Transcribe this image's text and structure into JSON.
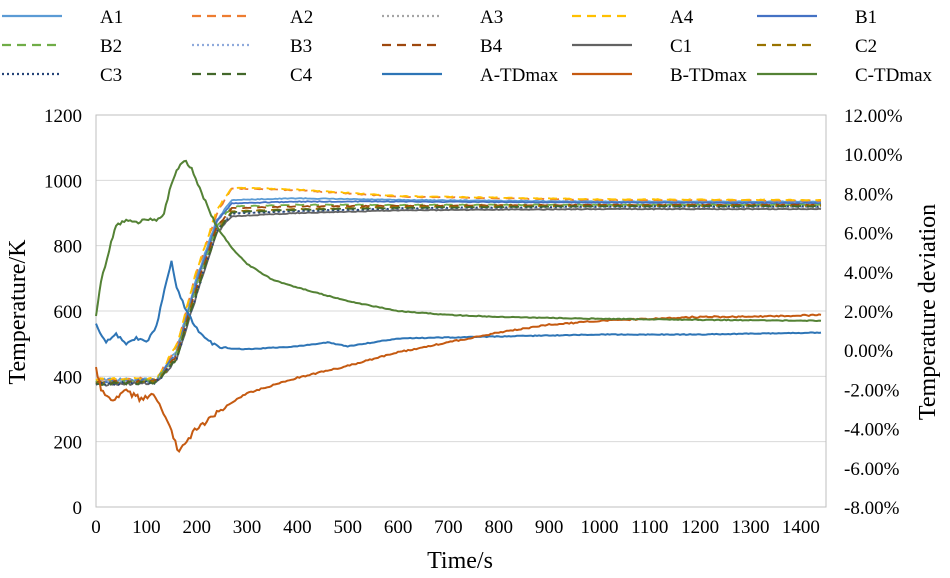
{
  "chart_data": {
    "type": "line",
    "title": "",
    "xlabel": "Time/s",
    "ylabel": "Temperature/K",
    "y2label": "Temperature deviation",
    "xlim": [
      0,
      1450
    ],
    "ylim": [
      0,
      1200
    ],
    "y2lim": [
      -8,
      12
    ],
    "x_ticks": [
      0,
      100,
      200,
      300,
      400,
      500,
      600,
      700,
      800,
      900,
      1000,
      1100,
      1200,
      1300,
      1400
    ],
    "y_ticks": [
      0,
      200,
      400,
      600,
      800,
      1000,
      1200
    ],
    "y2_ticks": [
      "-8.00%",
      "-6.00%",
      "-4.00%",
      "-2.00%",
      "0.00%",
      "2.00%",
      "4.00%",
      "6.00%",
      "8.00%",
      "10.00%",
      "12.00%"
    ],
    "grid": true,
    "legend_position": "top",
    "series": [
      {
        "name": "A1",
        "axis": "left",
        "color": "#5b9bd5",
        "dash": "solid",
        "x": [
          0,
          120,
          160,
          200,
          240,
          270,
          400,
          600,
          1000,
          1440
        ],
        "values": [
          390,
          390,
          480,
          700,
          880,
          940,
          945,
          940,
          935,
          935
        ]
      },
      {
        "name": "A2",
        "axis": "left",
        "color": "#ed7d31",
        "dash": "dash",
        "x": [
          0,
          120,
          160,
          200,
          240,
          270,
          400,
          600,
          1000,
          1440
        ],
        "values": [
          390,
          392,
          490,
          720,
          900,
          975,
          970,
          950,
          940,
          938
        ]
      },
      {
        "name": "A3",
        "axis": "left",
        "color": "#a5a5a5",
        "dash": "dot",
        "x": [
          0,
          120,
          160,
          200,
          240,
          270,
          400,
          600,
          1000,
          1440
        ],
        "values": [
          385,
          388,
          475,
          690,
          860,
          900,
          905,
          910,
          915,
          915
        ]
      },
      {
        "name": "A4",
        "axis": "left",
        "color": "#ffc000",
        "dash": "dash",
        "x": [
          0,
          120,
          160,
          200,
          240,
          270,
          400,
          600,
          1000,
          1440
        ],
        "values": [
          390,
          393,
          495,
          725,
          910,
          978,
          972,
          952,
          942,
          940
        ]
      },
      {
        "name": "B1",
        "axis": "left",
        "color": "#4472c4",
        "dash": "solid",
        "x": [
          0,
          120,
          160,
          200,
          240,
          270,
          400,
          600,
          1000,
          1440
        ],
        "values": [
          380,
          388,
          470,
          690,
          870,
          930,
          935,
          935,
          932,
          930
        ]
      },
      {
        "name": "B2",
        "axis": "left",
        "color": "#70ad47",
        "dash": "dash",
        "x": [
          0,
          120,
          160,
          200,
          240,
          270,
          400,
          600,
          1000,
          1440
        ],
        "values": [
          382,
          386,
          468,
          680,
          860,
          920,
          925,
          925,
          925,
          925
        ]
      },
      {
        "name": "B3",
        "axis": "left",
        "color": "#8faadc",
        "dash": "dot",
        "x": [
          0,
          120,
          160,
          200,
          240,
          270,
          400,
          600,
          1000,
          1440
        ],
        "values": [
          380,
          384,
          460,
          670,
          850,
          900,
          905,
          912,
          918,
          918
        ]
      },
      {
        "name": "B4",
        "axis": "left",
        "color": "#9e480e",
        "dash": "dash",
        "x": [
          0,
          120,
          160,
          200,
          240,
          270,
          400,
          600,
          1000,
          1440
        ],
        "values": [
          380,
          385,
          462,
          675,
          855,
          915,
          920,
          922,
          925,
          925
        ]
      },
      {
        "name": "C1",
        "axis": "left",
        "color": "#636363",
        "dash": "solid",
        "x": [
          0,
          120,
          160,
          200,
          240,
          270,
          400,
          600,
          1000,
          1440
        ],
        "values": [
          375,
          380,
          450,
          650,
          840,
          890,
          900,
          908,
          912,
          912
        ]
      },
      {
        "name": "C2",
        "axis": "left",
        "color": "#997300",
        "dash": "dash",
        "x": [
          0,
          120,
          160,
          200,
          240,
          270,
          400,
          600,
          1000,
          1440
        ],
        "values": [
          378,
          383,
          455,
          660,
          845,
          905,
          912,
          918,
          922,
          922
        ]
      },
      {
        "name": "C3",
        "axis": "left",
        "color": "#264478",
        "dash": "dot",
        "x": [
          0,
          120,
          160,
          200,
          240,
          270,
          400,
          600,
          1000,
          1440
        ],
        "values": [
          376,
          381,
          452,
          655,
          842,
          898,
          906,
          914,
          920,
          920
        ]
      },
      {
        "name": "C4",
        "axis": "left",
        "color": "#43682b",
        "dash": "dash",
        "x": [
          0,
          120,
          160,
          200,
          240,
          270,
          400,
          600,
          1000,
          1440
        ],
        "values": [
          377,
          382,
          454,
          658,
          844,
          902,
          910,
          916,
          921,
          921
        ]
      },
      {
        "name": "A-TDmax",
        "axis": "right",
        "color": "#2e75b6",
        "dash": "solid",
        "x": [
          0,
          20,
          40,
          60,
          80,
          100,
          120,
          140,
          150,
          160,
          180,
          200,
          220,
          250,
          300,
          400,
          460,
          500,
          600,
          800,
          1000,
          1200,
          1440
        ],
        "values": [
          1.3,
          0.4,
          0.8,
          0.3,
          0.6,
          0.4,
          1.2,
          3.5,
          4.5,
          3.2,
          2.0,
          1.1,
          0.5,
          0.1,
          0.05,
          0.2,
          0.4,
          0.2,
          0.6,
          0.7,
          0.8,
          0.8,
          0.9
        ]
      },
      {
        "name": "B-TDmax",
        "axis": "right",
        "color": "#c55a11",
        "dash": "solid",
        "x": [
          0,
          10,
          30,
          60,
          90,
          110,
          130,
          150,
          165,
          180,
          200,
          220,
          260,
          300,
          400,
          500,
          600,
          700,
          800,
          900,
          1000,
          1100,
          1200,
          1300,
          1440
        ],
        "values": [
          -1.0,
          -2.0,
          -2.6,
          -2.1,
          -2.5,
          -2.2,
          -3.0,
          -4.2,
          -5.2,
          -4.6,
          -4.0,
          -3.6,
          -2.8,
          -2.2,
          -1.4,
          -0.8,
          -0.1,
          0.4,
          0.9,
          1.3,
          1.5,
          1.6,
          1.7,
          1.7,
          1.8
        ]
      },
      {
        "name": "C-TDmax",
        "axis": "right",
        "color": "#548235",
        "dash": "solid",
        "x": [
          0,
          10,
          30,
          40,
          60,
          80,
          100,
          120,
          135,
          150,
          160,
          175,
          190,
          210,
          240,
          270,
          300,
          350,
          400,
          500,
          600,
          700,
          800,
          1000,
          1200,
          1440
        ],
        "values": [
          1.8,
          3.5,
          5.5,
          6.4,
          6.6,
          6.5,
          6.7,
          6.6,
          7.0,
          8.5,
          9.2,
          9.7,
          9.3,
          8.0,
          6.3,
          5.2,
          4.4,
          3.6,
          3.2,
          2.5,
          2.0,
          1.8,
          1.7,
          1.6,
          1.55,
          1.5
        ]
      }
    ]
  }
}
